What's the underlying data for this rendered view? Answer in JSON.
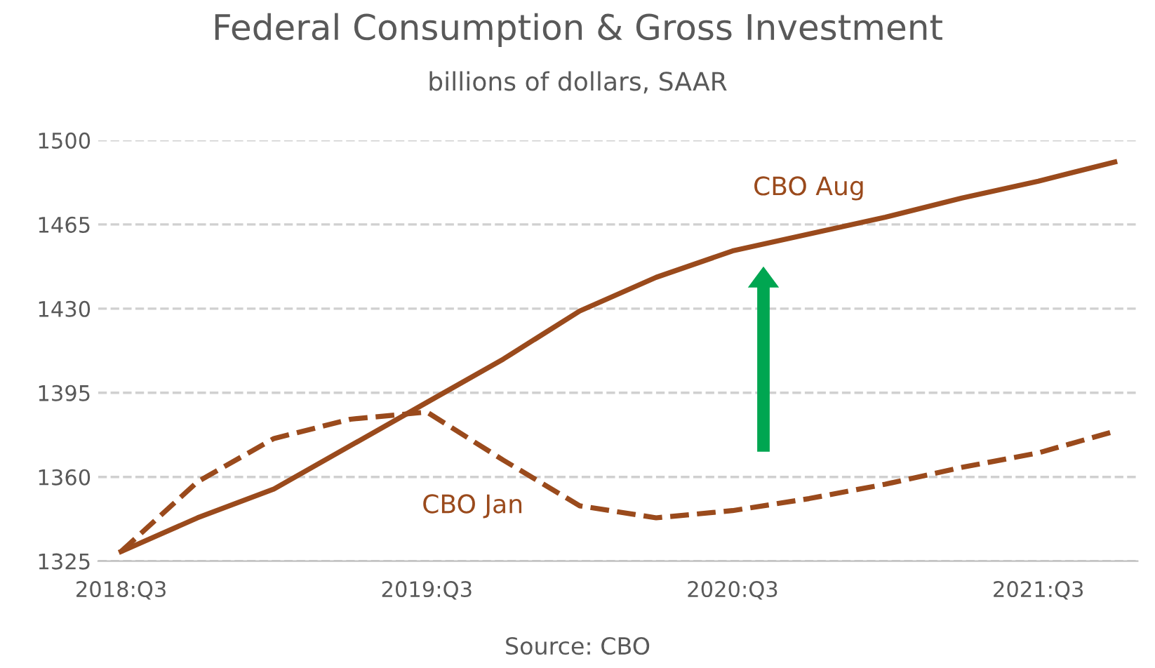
{
  "chart_data": {
    "type": "line",
    "title": "Federal Consumption & Gross Investment",
    "subtitle": "billions of dollars, SAAR",
    "categories": [
      "2018:Q3",
      null,
      null,
      null,
      "2019:Q3",
      null,
      null,
      null,
      "2020:Q3",
      null,
      null,
      null,
      "2021:Q3",
      null
    ],
    "series": [
      {
        "name": "CBO Aug",
        "color": "#9a4a1c",
        "line_style": "solid",
        "values": [
          1329,
          1343,
          1355,
          1373,
          1391,
          1409,
          1429,
          1443,
          1454,
          1461,
          1468,
          1476,
          1483,
          1491
        ]
      },
      {
        "name": "CBO Jan",
        "color": "#9a4a1c",
        "line_style": "dashed",
        "values": [
          1329,
          1358,
          1376,
          1384,
          1387,
          1367,
          1348,
          1343,
          1346,
          1351,
          1357,
          1364,
          1370,
          1379
        ]
      }
    ],
    "ylim": [
      1325,
      1500
    ],
    "yticks": [
      1325,
      1360,
      1395,
      1430,
      1465,
      1500
    ],
    "grid": "y",
    "legend": false,
    "marker": "none",
    "annotations": [
      "Source: CBO"
    ]
  }
}
